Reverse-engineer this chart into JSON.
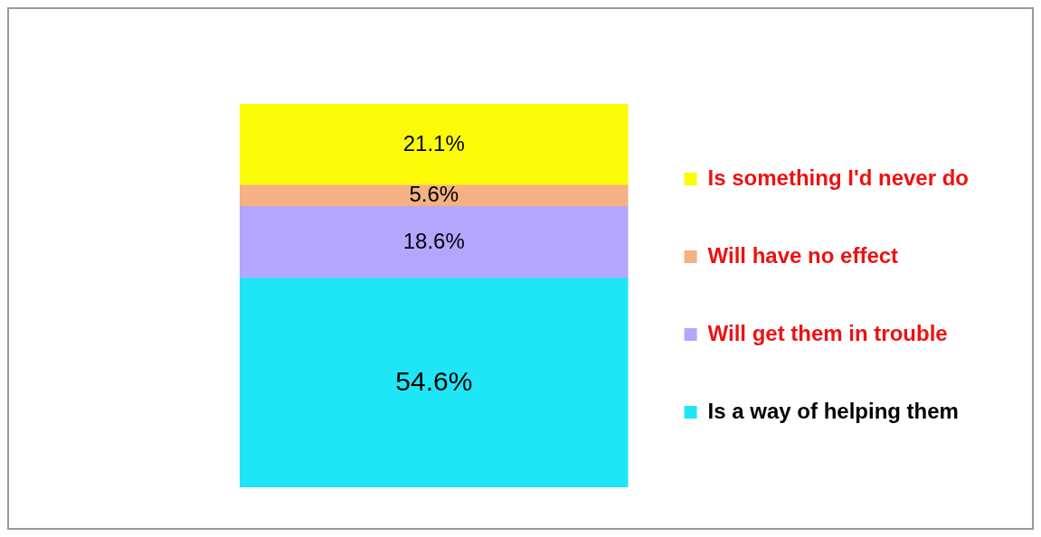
{
  "chart_data": {
    "type": "bar",
    "stacked": true,
    "categories": [
      null
    ],
    "tick_labels": false,
    "grid": false,
    "legend": "right",
    "series": [
      {
        "name": "Is a way of helping them",
        "color": "#1fe6f7",
        "values": [
          54.6
        ],
        "value_labels": [
          "54.6%"
        ]
      },
      {
        "name": "Will get them in trouble",
        "color": "#b3a6fc",
        "values": [
          18.6
        ],
        "value_labels": [
          "18.6%"
        ]
      },
      {
        "name": "Will have no effect",
        "color": "#f4b183",
        "values": [
          5.6
        ],
        "value_labels": [
          "5.6%"
        ]
      },
      {
        "name": "Is something I'd never do",
        "color": "#fbfb08",
        "values": [
          21.1
        ],
        "value_labels": [
          "21.1%"
        ]
      }
    ]
  }
}
